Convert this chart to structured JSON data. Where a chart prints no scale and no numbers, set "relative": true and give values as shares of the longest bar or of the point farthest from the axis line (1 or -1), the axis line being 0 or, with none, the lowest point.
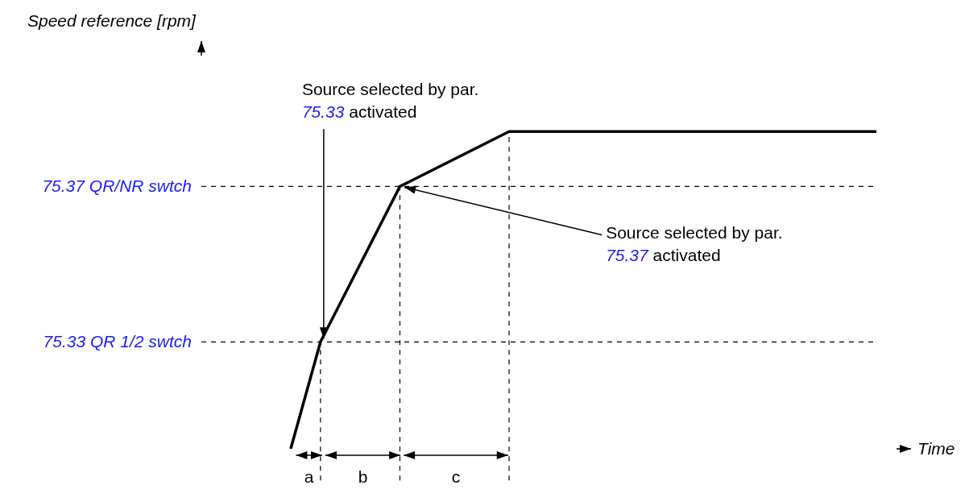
{
  "chart_data": {
    "type": "line",
    "relative": true,
    "xlabel": "Time",
    "categories": [
      null,
      null,
      null,
      null,
      null,
      null,
      null,
      null,
      null,
      null,
      null,
      null,
      null,
      null,
      null,
      null,
      null,
      null,
      null,
      null,
      null,
      null,
      null,
      null,
      null,
      null,
      null,
      null,
      null,
      null,
      null,
      null,
      null,
      null,
      null,
      null,
      null,
      null,
      null,
      null,
      null,
      null,
      null,
      null,
      null,
      null,
      null,
      null,
      null,
      null,
      null,
      null,
      null,
      null,
      null,
      null,
      null,
      null,
      null,
      null,
      null,
      null,
      null,
      null,
      null,
      null,
      null,
      null,
      null,
      null,
      null,
      null
    ],
    "series": [
      {
        "color": "#000000",
        "values": [
          null,
          null,
          null,
          null,
          null,
          null,
          null,
          null,
          null,
          0,
          null,
          null,
          0.337,
          null,
          null,
          null,
          null,
          null,
          null,
          null,
          0.827,
          null,
          null,
          null,
          null,
          null,
          null,
          null,
          null,
          null,
          null,
          1,
          null,
          null,
          null,
          null,
          null,
          null,
          null,
          null,
          null,
          null,
          null,
          null,
          null,
          null,
          null,
          null,
          null,
          null,
          null,
          null,
          null,
          null,
          null,
          null,
          null,
          null,
          null,
          null,
          null,
          null,
          null,
          null,
          null,
          null,
          null,
          null,
          1,
          null,
          null,
          null
        ]
      }
    ],
    "marker": "none",
    "line_style": "solid",
    "grid": false,
    "legend": false,
    "ref_lines": [
      {
        "axis": "y",
        "value": 0.337,
        "label": "75.33 QR 1/2 swtch",
        "color": "#000000",
        "line_style": "dashed"
      },
      {
        "axis": "y",
        "value": 0.827,
        "label": "75.37 QR/NR swtch",
        "color": "#000000",
        "line_style": "dashed"
      }
    ],
    "annotations": [
      "Speed reference [rpm]",
      "Source selected by par. 75.33 activated",
      "Source selected by par. 75.37 activated",
      "a",
      "b",
      "c"
    ]
  }
}
